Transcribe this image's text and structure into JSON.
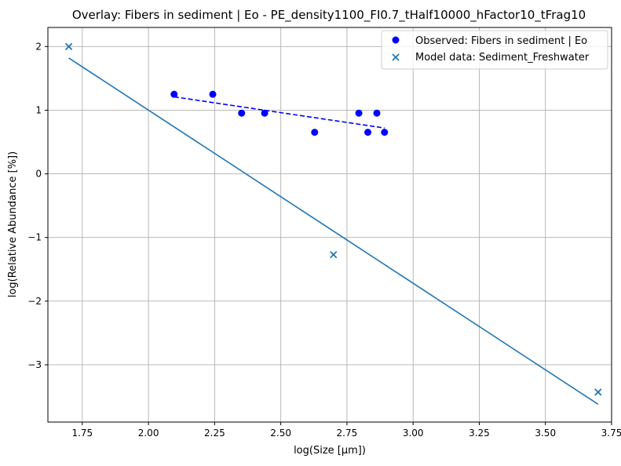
{
  "chart_data": {
    "type": "scatter",
    "title": "Overlay: Fibers in sediment | Eo - PE_density1100_FI0.7_tHalf10000_hFactor10_tFrag10",
    "xlabel": "log(Size [µm])",
    "ylabel": "log(Relative Abundance [%])",
    "xlim": [
      1.62,
      3.75
    ],
    "ylim": [
      -3.9,
      2.3
    ],
    "xticks": [
      1.75,
      2.0,
      2.25,
      2.5,
      2.75,
      3.0,
      3.25,
      3.5,
      3.75
    ],
    "xtick_labels": [
      "1.75",
      "2.00",
      "2.25",
      "2.50",
      "2.75",
      "3.00",
      "3.25",
      "3.50",
      "3.75"
    ],
    "yticks": [
      -3,
      -2,
      -1,
      0,
      1,
      2
    ],
    "ytick_labels": [
      "−3",
      "−2",
      "−1",
      "0",
      "1",
      "2"
    ],
    "grid": true,
    "legend_position": "top-right",
    "series": [
      {
        "name": "Observed: Fibers in sediment | Eo",
        "marker": "circle",
        "color": "#0000ff",
        "x": [
          2.097,
          2.243,
          2.352,
          2.439,
          2.628,
          2.795,
          2.829,
          2.863,
          2.892
        ],
        "y": [
          1.25,
          1.25,
          0.954,
          0.954,
          0.653,
          0.954,
          0.653,
          0.954,
          0.653
        ]
      },
      {
        "name": "Model data: Sediment_Freshwater",
        "marker": "x",
        "color": "#1f77b4",
        "x": [
          1.699,
          2.699,
          3.699
        ],
        "y": [
          2.0,
          -1.27,
          -3.43
        ]
      }
    ],
    "fit_lines": [
      {
        "style": "dashed",
        "color": "#0000ff",
        "x": [
          2.097,
          2.892
        ],
        "y": [
          1.21,
          0.72
        ]
      },
      {
        "style": "solid",
        "color": "#1f77b4",
        "x": [
          1.699,
          3.699
        ],
        "y": [
          1.82,
          -3.62
        ]
      }
    ]
  }
}
